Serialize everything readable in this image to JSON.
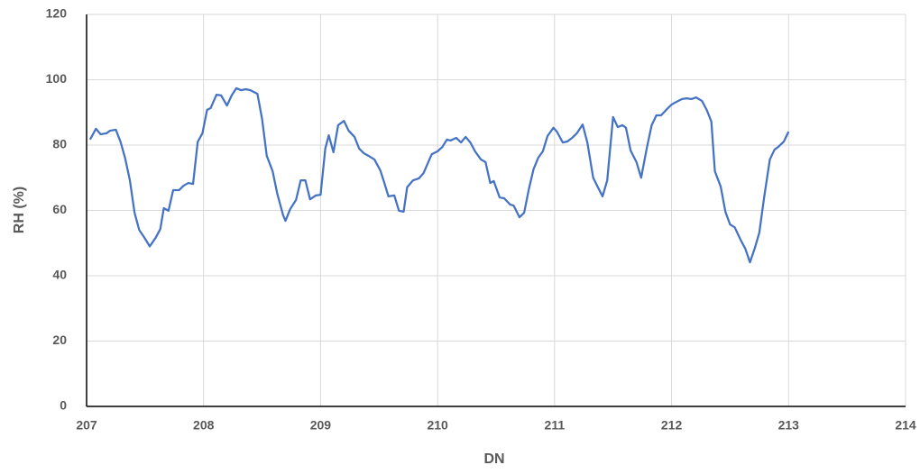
{
  "chart_data": {
    "type": "line",
    "x_label": "DN",
    "y_label": "RH (%)",
    "xlim": [
      207,
      214
    ],
    "xticks": [
      207,
      208,
      209,
      210,
      211,
      212,
      213,
      214
    ],
    "ylim": [
      0,
      120
    ],
    "yticks": [
      0,
      20,
      40,
      60,
      80,
      100,
      120
    ],
    "grid": true,
    "series": [
      {
        "color": "#4472c4",
        "x": [
          207.03,
          207.08,
          207.12,
          207.17,
          207.2,
          207.25,
          207.29,
          207.33,
          207.37,
          207.41,
          207.45,
          207.49,
          207.54,
          207.59,
          207.63,
          207.66,
          207.7,
          207.74,
          207.79,
          207.83,
          207.87,
          207.91,
          207.95,
          207.99,
          208.03,
          208.06,
          208.11,
          208.15,
          208.2,
          208.24,
          208.28,
          208.32,
          208.36,
          208.4,
          208.46,
          208.5,
          208.54,
          208.59,
          208.63,
          208.68,
          208.7,
          208.74,
          208.79,
          208.83,
          208.87,
          208.91,
          208.96,
          209.0,
          209.04,
          209.07,
          209.11,
          209.15,
          209.2,
          209.24,
          209.29,
          209.33,
          209.37,
          209.41,
          209.46,
          209.51,
          209.54,
          209.58,
          209.63,
          209.67,
          209.71,
          209.74,
          209.79,
          209.84,
          209.88,
          209.91,
          209.95,
          210.0,
          210.04,
          210.08,
          210.11,
          210.16,
          210.2,
          210.24,
          210.28,
          210.32,
          210.37,
          210.41,
          210.45,
          210.48,
          210.53,
          210.57,
          210.62,
          210.65,
          210.7,
          210.74,
          210.78,
          210.82,
          210.86,
          210.9,
          210.94,
          210.99,
          211.02,
          211.07,
          211.11,
          211.15,
          211.19,
          211.24,
          211.28,
          211.33,
          211.37,
          211.41,
          211.45,
          211.5,
          211.54,
          211.58,
          211.61,
          211.65,
          211.7,
          211.74,
          211.79,
          211.83,
          211.87,
          211.91,
          211.96,
          212.0,
          212.04,
          212.09,
          212.13,
          212.17,
          212.21,
          212.26,
          212.3,
          212.34,
          212.37,
          212.42,
          212.46,
          212.5,
          212.54,
          212.59,
          212.63,
          212.67,
          212.71,
          212.75,
          212.79,
          212.84,
          212.88,
          212.91,
          212.96,
          213.0
        ],
        "values": [
          81.7,
          85,
          83.3,
          83.6,
          84.4,
          84.7,
          81,
          75.9,
          69.2,
          59.3,
          54,
          51.9,
          49,
          51.6,
          54.3,
          60.7,
          59.9,
          66.2,
          66.2,
          67.6,
          68.4,
          68.1,
          81,
          83.6,
          90.8,
          91.3,
          95.4,
          95.2,
          92.1,
          95.2,
          97.4,
          96.8,
          97.1,
          96.8,
          95.7,
          88,
          76.7,
          72,
          65.1,
          58.5,
          56.8,
          60.4,
          63.2,
          69.2,
          69.2,
          63.4,
          64.6,
          64.8,
          78.9,
          83,
          77.8,
          86.1,
          87.4,
          84.4,
          82.5,
          78.9,
          77.5,
          76.7,
          75.6,
          72.3,
          69,
          64.3,
          64.6,
          59.9,
          59.6,
          67.1,
          69.2,
          69.8,
          71.4,
          73.9,
          77.2,
          78.1,
          79.4,
          81.7,
          81.4,
          82.2,
          80.8,
          82.5,
          80.8,
          78.1,
          75.6,
          74.8,
          68.4,
          69,
          64,
          63.7,
          61.8,
          61.5,
          57.9,
          59.3,
          66.5,
          72.6,
          76.1,
          78.1,
          82.8,
          85.3,
          84.1,
          80.8,
          81.1,
          82.2,
          83.6,
          86.3,
          80.8,
          70,
          67.1,
          64.3,
          69.2,
          88.6,
          85.5,
          86.1,
          85.3,
          78.3,
          74.8,
          70,
          79.4,
          86.1,
          89.1,
          89.1,
          91,
          92.4,
          93.2,
          94.1,
          94.3,
          94.1,
          94.6,
          93.5,
          90.8,
          87.2,
          72,
          67.3,
          59.6,
          55.7,
          54.8,
          51,
          48.3,
          44.1,
          48.3,
          53.2,
          63.7,
          75.6,
          78.6,
          79.4,
          81.1,
          84.1
        ]
      }
    ]
  }
}
